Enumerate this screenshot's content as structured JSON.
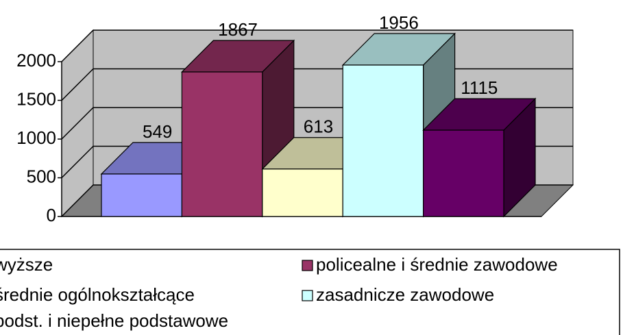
{
  "chart_data": {
    "type": "bar3d",
    "categories": [
      "wyższe",
      "policealne i średnie zawodowe",
      "średnie ogólnokształcące",
      "zasadnicze zawodowe",
      "podst. i niepełne podstawowe"
    ],
    "values": [
      549,
      1867,
      613,
      1956,
      1115
    ],
    "colors": [
      "#9999ff",
      "#993366",
      "#ffffcc",
      "#ccffff",
      "#660066"
    ],
    "ylim": [
      0,
      2000
    ],
    "yticks": [
      0,
      500,
      1000,
      1500,
      2000
    ],
    "grid": true
  }
}
